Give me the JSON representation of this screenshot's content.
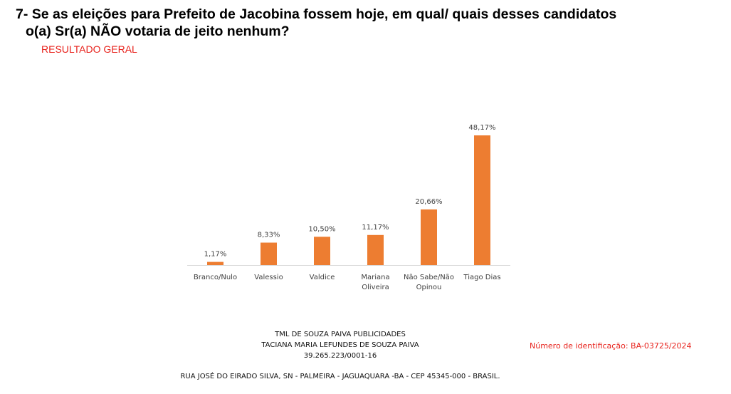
{
  "header": {
    "title_line1": "7- Se as eleições para Prefeito de Jacobina fossem hoje, em qual/ quais desses candidatos",
    "title_line2": "o(a) Sr(a) NÃO votaria de jeito nenhum?",
    "subtitle": "RESULTADO GERAL"
  },
  "chart_data": {
    "type": "bar",
    "categories": [
      [
        "Branco/Nulo"
      ],
      [
        "Valessio"
      ],
      [
        "Valdice"
      ],
      [
        "Mariana",
        "Oliveira"
      ],
      [
        "Não Sabe/Não",
        "Opinou"
      ],
      [
        "Tiago Dias"
      ]
    ],
    "values": [
      1.17,
      8.33,
      10.5,
      11.17,
      20.66,
      48.17
    ],
    "data_labels": [
      "1,17%",
      "8,33%",
      "10,50%",
      "11,17%",
      "20,66%",
      "48,17%"
    ],
    "bar_color": "#ED7D31",
    "axis_color": "#D9D9D9",
    "ylim": [
      0,
      50
    ],
    "grid": false,
    "legend": "none"
  },
  "footer": {
    "company": "TML DE SOUZA PAIVA PUBLICIDADES",
    "owner": "TACIANA MARIA LEFUNDES DE SOUZA PAIVA",
    "cnpj": "39.265.223/0001-16",
    "address": "RUA JOSÉ DO EIRADO SILVA, SN - PALMEIRA - JAGUAQUARA -BA - CEP 45345-000 - BRASIL.",
    "id_number": "Número de identificação: BA-03725/2024"
  }
}
